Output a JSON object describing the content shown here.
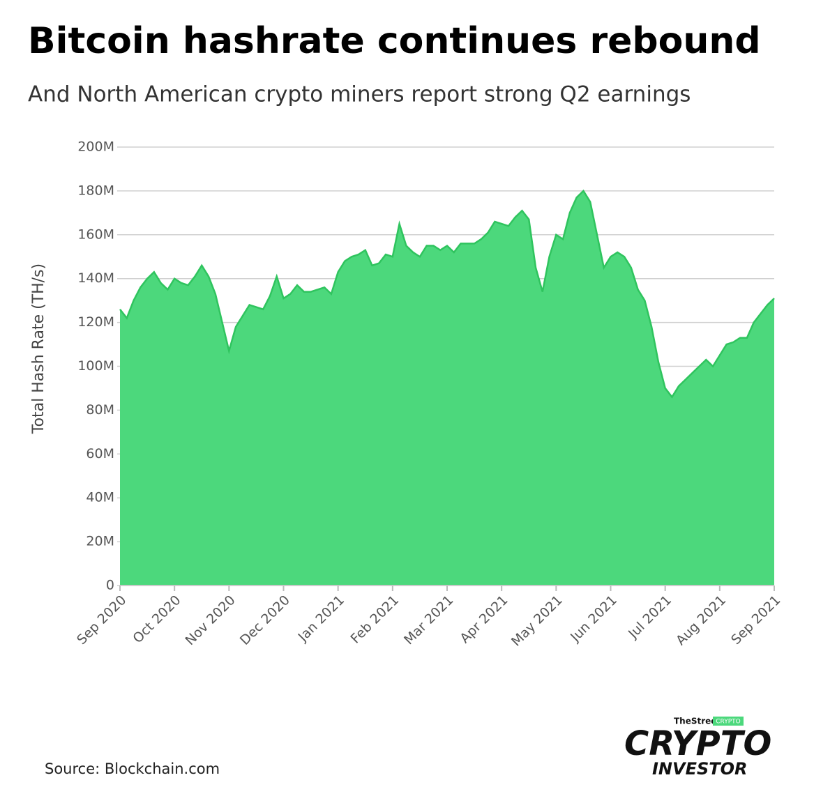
{
  "chart_data": {
    "type": "area",
    "title": "Bitcoin hashrate continues rebound",
    "subtitle": "And North American crypto miners report strong Q2 earnings",
    "ylabel": "Total Hash Rate (TH/s)",
    "source": "Source: Blockchain.com",
    "color": "#4cd87c",
    "line_color": "#2fc45e",
    "grid": true,
    "ylim": [
      0,
      200000000
    ],
    "yticks": [
      0,
      {
        "value": 20000000,
        "label": "20M"
      },
      {
        "value": 40000000,
        "label": "40M"
      },
      {
        "value": 60000000,
        "label": "60M"
      },
      {
        "value": 80000000,
        "label": "80M"
      },
      {
        "value": 100000000,
        "label": "100M"
      },
      {
        "value": 120000000,
        "label": "120M"
      },
      {
        "value": 140000000,
        "label": "140M"
      },
      {
        "value": 160000000,
        "label": "160M"
      },
      {
        "value": 180000000,
        "label": "180M"
      },
      {
        "value": 200000000,
        "label": "200M"
      }
    ],
    "categories": [
      "Sep 2020",
      null,
      null,
      null,
      null,
      null,
      null,
      null,
      "Oct 2020",
      null,
      null,
      null,
      null,
      null,
      null,
      null,
      "Nov 2020",
      null,
      null,
      null,
      null,
      null,
      null,
      null,
      "Dec 2020",
      null,
      null,
      null,
      null,
      null,
      null,
      null,
      "Jan 2021",
      null,
      null,
      null,
      null,
      null,
      null,
      null,
      "Feb 2021",
      null,
      null,
      null,
      null,
      null,
      null,
      null,
      "Mar 2021",
      null,
      null,
      null,
      null,
      null,
      null,
      null,
      "Apr 2021",
      null,
      null,
      null,
      null,
      null,
      null,
      null,
      "May 2021",
      null,
      null,
      null,
      null,
      null,
      null,
      null,
      "Jun 2021",
      null,
      null,
      null,
      null,
      null,
      null,
      null,
      "Jul 2021",
      null,
      null,
      null,
      null,
      null,
      null,
      null,
      "Aug 2021",
      null,
      null,
      null,
      null,
      null,
      null,
      null,
      "Sep 2021"
    ],
    "values": [
      126000000,
      122000000,
      130000000,
      136000000,
      140000000,
      143000000,
      138000000,
      135000000,
      140000000,
      138000000,
      137000000,
      141000000,
      146000000,
      141000000,
      133000000,
      120000000,
      107000000,
      118000000,
      123000000,
      128000000,
      127000000,
      126000000,
      132000000,
      141000000,
      131000000,
      133000000,
      137000000,
      134000000,
      134000000,
      135000000,
      136000000,
      133000000,
      143000000,
      148000000,
      150000000,
      151000000,
      153000000,
      146000000,
      147000000,
      151000000,
      150000000,
      165000000,
      155000000,
      152000000,
      150000000,
      155000000,
      155000000,
      153000000,
      155000000,
      152000000,
      156000000,
      156000000,
      156000000,
      158000000,
      161000000,
      166000000,
      165000000,
      164000000,
      168000000,
      171000000,
      167000000,
      145000000,
      134000000,
      150000000,
      160000000,
      158000000,
      170000000,
      177000000,
      180000000,
      175000000,
      160000000,
      145000000,
      150000000,
      152000000,
      150000000,
      145000000,
      135000000,
      130000000,
      118000000,
      102000000,
      90000000,
      86000000,
      91000000,
      94000000,
      97000000,
      100000000,
      103000000,
      100000000,
      105000000,
      110000000,
      111000000,
      113000000,
      113000000,
      120000000,
      124000000,
      128000000,
      131000000
    ]
  },
  "logo": {
    "brand": "TheStreet",
    "badge": "CRYPTO",
    "word1": "CRYPTO",
    "word2": "INVESTOR"
  }
}
